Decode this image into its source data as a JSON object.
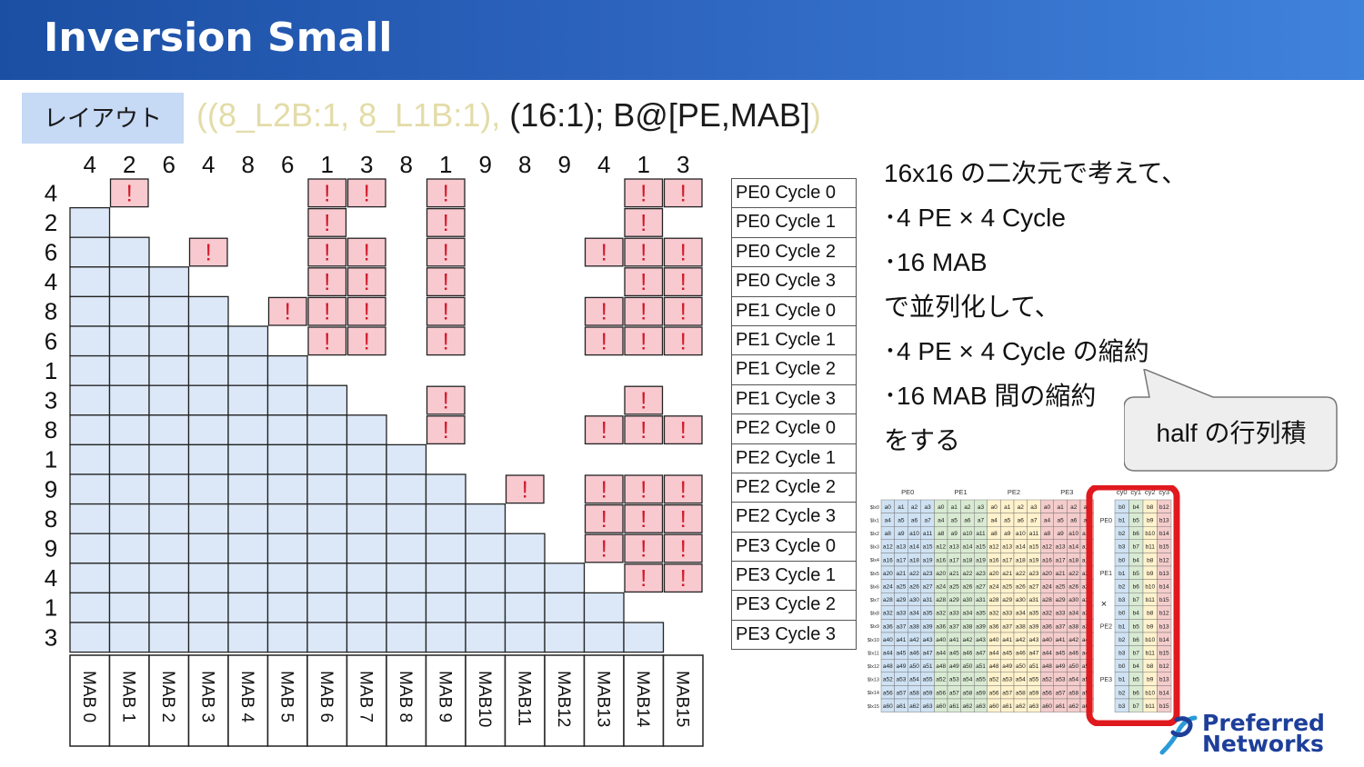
{
  "slide": {
    "title": "Inversion Small",
    "layout_label": "レイアウト",
    "layout_expr_faded_1": "((8_L2B:1, 8_L1B:1),",
    "layout_expr_main": " (16:1); B@[PE,MAB]",
    "layout_expr_faded_2": ")"
  },
  "grid": {
    "column_labels": [
      "4",
      "2",
      "6",
      "4",
      "8",
      "6",
      "1",
      "3",
      "8",
      "1",
      "9",
      "8",
      "9",
      "4",
      "1",
      "3"
    ],
    "row_labels": [
      "4",
      "2",
      "6",
      "4",
      "8",
      "6",
      "1",
      "3",
      "8",
      "1",
      "9",
      "8",
      "9",
      "4",
      "1",
      "3"
    ],
    "flag_symbol": "!",
    "blue_cell_color": "#dce8f7",
    "flag_cell_color": "#f9c9d0",
    "flag_color": "#d11a2a",
    "flagged_cells": [
      [
        0,
        1
      ],
      [
        0,
        6
      ],
      [
        0,
        7
      ],
      [
        0,
        9
      ],
      [
        0,
        14
      ],
      [
        0,
        15
      ],
      [
        1,
        6
      ],
      [
        1,
        9
      ],
      [
        1,
        14
      ],
      [
        2,
        3
      ],
      [
        2,
        6
      ],
      [
        2,
        7
      ],
      [
        2,
        9
      ],
      [
        2,
        13
      ],
      [
        2,
        14
      ],
      [
        2,
        15
      ],
      [
        3,
        6
      ],
      [
        3,
        7
      ],
      [
        3,
        9
      ],
      [
        3,
        14
      ],
      [
        3,
        15
      ],
      [
        4,
        5
      ],
      [
        4,
        6
      ],
      [
        4,
        7
      ],
      [
        4,
        9
      ],
      [
        4,
        13
      ],
      [
        4,
        14
      ],
      [
        4,
        15
      ],
      [
        5,
        6
      ],
      [
        5,
        7
      ],
      [
        5,
        9
      ],
      [
        5,
        13
      ],
      [
        5,
        14
      ],
      [
        5,
        15
      ],
      [
        7,
        9
      ],
      [
        7,
        14
      ],
      [
        8,
        9
      ],
      [
        8,
        13
      ],
      [
        8,
        14
      ],
      [
        8,
        15
      ],
      [
        10,
        11
      ],
      [
        10,
        13
      ],
      [
        10,
        14
      ],
      [
        10,
        15
      ],
      [
        11,
        13
      ],
      [
        11,
        14
      ],
      [
        11,
        15
      ],
      [
        12,
        13
      ],
      [
        12,
        14
      ],
      [
        12,
        15
      ],
      [
        13,
        14
      ],
      [
        13,
        15
      ]
    ],
    "mab_labels": [
      "MAB 0",
      "MAB 1",
      "MAB 2",
      "MAB 3",
      "MAB 4",
      "MAB 5",
      "MAB 6",
      "MAB 7",
      "MAB 8",
      "MAB 9",
      "MAB10",
      "MAB11",
      "MAB12",
      "MAB13",
      "MAB14",
      "MAB15"
    ]
  },
  "pe_cycles": [
    "PE0 Cycle 0",
    "PE0 Cycle 1",
    "PE0 Cycle 2",
    "PE0 Cycle 3",
    "PE1 Cycle 0",
    "PE1 Cycle 1",
    "PE1 Cycle 2",
    "PE1 Cycle 3",
    "PE2 Cycle 0",
    "PE2 Cycle 1",
    "PE2 Cycle 2",
    "PE2 Cycle 3",
    "PE3 Cycle 0",
    "PE3 Cycle 1",
    "PE3 Cycle 2",
    "PE3 Cycle 3"
  ],
  "notes": [
    "16x16 の二次元で考えて、",
    "･4 PE × 4 Cycle",
    "･16 MAB",
    "で並列化して、",
    "･4 PE × 4 Cycle の縮約",
    "･16 MAB 間の縮約",
    "をする"
  ],
  "callout": {
    "text": "half の行列積"
  },
  "figure": {
    "pe_headers": [
      "PE0",
      "PE1",
      "PE2",
      "PE3"
    ],
    "cycle_headers": [
      "cy0",
      "cy1",
      "cy2",
      "cy3"
    ],
    "row_labels": [
      "$lx0",
      "$lx1",
      "$lx2",
      "$lx3",
      "$lx4",
      "$lx5",
      "$lx6",
      "$lx7",
      "$lx8",
      "$lx9",
      "$lx10",
      "$lx11",
      "$lx12",
      "$lx13",
      "$lx14",
      "$lx15"
    ],
    "pe_side_labels": [
      "PE0",
      "PE1",
      "PE2",
      "PE3"
    ],
    "times_symbol": "×",
    "a_cells_per_row": [
      [
        "a0",
        "a1",
        "a2",
        "a3"
      ],
      [
        "a4",
        "a5",
        "a6",
        "a7"
      ],
      [
        "a8",
        "a9",
        "a10",
        "a11"
      ],
      [
        "a12",
        "a13",
        "a14",
        "a15"
      ],
      [
        "a16",
        "a17",
        "a18",
        "a19"
      ],
      [
        "a20",
        "a21",
        "a22",
        "a23"
      ],
      [
        "a24",
        "a25",
        "a26",
        "a27"
      ],
      [
        "a28",
        "a29",
        "a30",
        "a31"
      ],
      [
        "a32",
        "a33",
        "a34",
        "a35"
      ],
      [
        "a36",
        "a37",
        "a38",
        "a39"
      ],
      [
        "a40",
        "a41",
        "a42",
        "a43"
      ],
      [
        "a44",
        "a45",
        "a46",
        "a47"
      ],
      [
        "a48",
        "a49",
        "a50",
        "a51"
      ],
      [
        "a52",
        "a53",
        "a54",
        "a55"
      ],
      [
        "a56",
        "a57",
        "a58",
        "a59"
      ],
      [
        "a60",
        "a61",
        "a62",
        "a63"
      ]
    ],
    "b_cells_per_row": [
      [
        "b0",
        "b4",
        "b8",
        "b12"
      ],
      [
        "b1",
        "b5",
        "b9",
        "b13"
      ],
      [
        "b2",
        "b6",
        "b10",
        "b14"
      ],
      [
        "b3",
        "b7",
        "b11",
        "b15"
      ]
    ],
    "pe_colors": [
      "#cfe2f3",
      "#d9ead3",
      "#fff2cc",
      "#f4cccc"
    ],
    "b_colors": [
      "#cfe2f3",
      "#d9ead3",
      "#fff2cc",
      "#f4cccc"
    ],
    "highlight_color": "#e0191f"
  },
  "logo": {
    "line1": "Preferred",
    "line2": "Networks",
    "color": "#1d3f9a"
  }
}
